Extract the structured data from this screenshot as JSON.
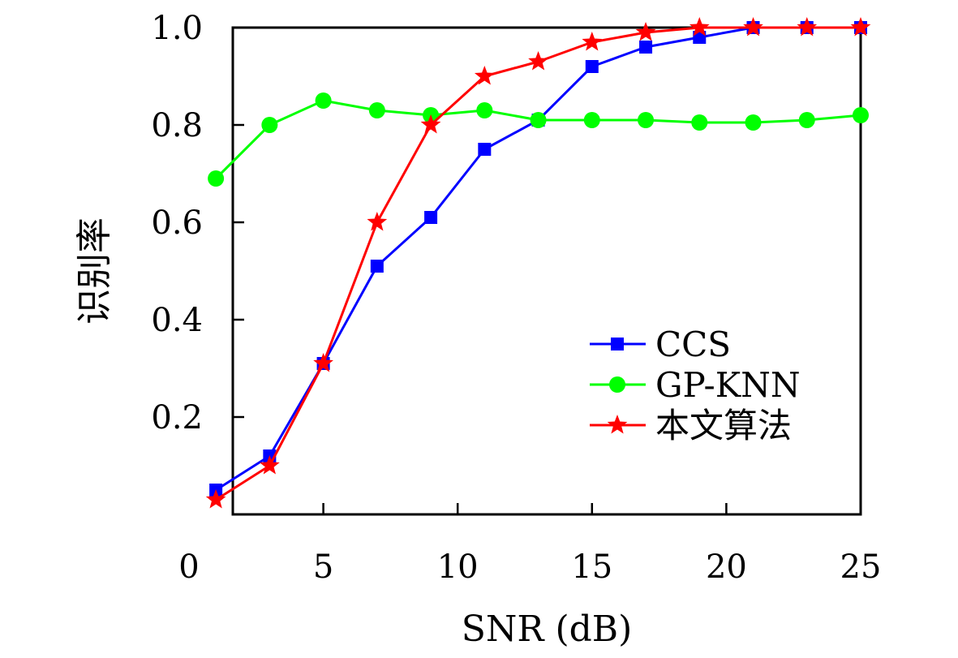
{
  "chart_data": {
    "type": "line",
    "title": "",
    "xlabel": "SNR (dB)",
    "ylabel": "识别率",
    "xlim": [
      0,
      25
    ],
    "ylim": [
      0,
      1.0
    ],
    "x_ticks": [
      {
        "value": 0,
        "label": "0"
      },
      {
        "value": 5,
        "label": "5"
      },
      {
        "value": 10,
        "label": "10"
      },
      {
        "value": 15,
        "label": "15"
      },
      {
        "value": 20,
        "label": "20"
      },
      {
        "value": 25,
        "label": "25"
      }
    ],
    "y_ticks": [
      {
        "value": 0.2,
        "label": "0.2"
      },
      {
        "value": 0.4,
        "label": "0.4"
      },
      {
        "value": 0.6,
        "label": "0.6"
      },
      {
        "value": 0.8,
        "label": "0.8"
      },
      {
        "value": 1.0,
        "label": "1.0"
      }
    ],
    "grid": false,
    "legend_position": "bottom-right",
    "series": [
      {
        "name": "CCS",
        "color": "#0000ff",
        "marker": "square",
        "x": [
          1,
          3,
          5,
          7,
          9,
          11,
          13,
          15,
          17,
          19,
          21,
          23,
          25
        ],
        "values": [
          0.05,
          0.12,
          0.31,
          0.51,
          0.61,
          0.75,
          0.81,
          0.92,
          0.96,
          0.98,
          1.0,
          1.0,
          1.0
        ]
      },
      {
        "name": "GP-KNN",
        "color": "#00ff00",
        "marker": "circle",
        "x": [
          1,
          3,
          5,
          7,
          9,
          11,
          13,
          15,
          17,
          19,
          21,
          23,
          25
        ],
        "values": [
          0.69,
          0.8,
          0.85,
          0.83,
          0.82,
          0.83,
          0.81,
          0.81,
          0.81,
          0.805,
          0.805,
          0.81,
          0.82
        ]
      },
      {
        "name": "本文算法",
        "color": "#ff0000",
        "marker": "star",
        "x": [
          1,
          3,
          5,
          7,
          9,
          11,
          13,
          15,
          17,
          19,
          21,
          23,
          25
        ],
        "values": [
          0.03,
          0.1,
          0.31,
          0.6,
          0.8,
          0.9,
          0.93,
          0.97,
          0.99,
          1.0,
          1.0,
          1.0,
          1.0
        ]
      }
    ]
  }
}
